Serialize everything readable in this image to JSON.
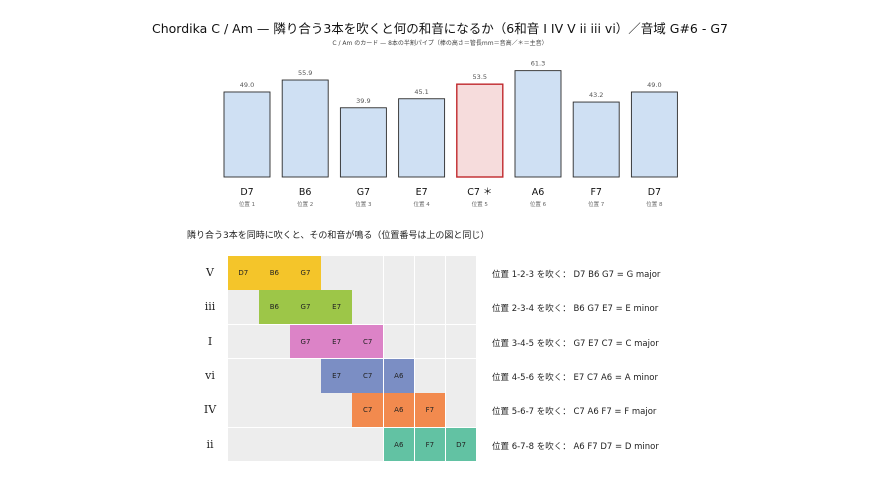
{
  "header": {
    "title": "Chordika C / Am — 隣り合う3本を吹くと何の和音になるか（6和音 I IV V ii iii vi）／音域 G#6 - G7",
    "subtitle": "C / Am のカード — 8本の半割パイプ（棒の高さ＝管長mm＝音高／＊＝主音）"
  },
  "chart_data": {
    "type": "bar",
    "categories": [
      "D7",
      "B6",
      "G7",
      "E7",
      "C7 ＊",
      "A6",
      "F7",
      "D7"
    ],
    "positions": [
      "位置 1",
      "位置 2",
      "位置 3",
      "位置 4",
      "位置 5",
      "位置 6",
      "位置 7",
      "位置 8"
    ],
    "values": [
      49.0,
      55.9,
      39.9,
      45.1,
      53.5,
      61.3,
      43.2,
      49.0
    ],
    "value_labels": [
      "49.0",
      "55.9",
      "39.9",
      "45.1",
      "53.5",
      "61.3",
      "43.2",
      "49.0"
    ],
    "highlight_index": 4,
    "colors": {
      "fill": "#cfe0f3",
      "stroke": "#2b2b2b",
      "highlight_fill": "#f6dcdc",
      "highlight_stroke": "#c0282c"
    }
  },
  "grid_section": {
    "label": "隣り合う3本を同時に吹くと、その和音が鳴る（位置番号は上の図と同じ）",
    "rows": [
      {
        "numeral": "V",
        "start": 0,
        "cells": [
          "D7",
          "B6",
          "G7"
        ],
        "color": "#f4c52a",
        "description": "位置 1-2-3 を吹く：  D7 B6 G7 = G major"
      },
      {
        "numeral": "iii",
        "start": 1,
        "cells": [
          "B6",
          "G7",
          "E7"
        ],
        "color": "#9dc648",
        "description": "位置 2-3-4 を吹く：  B6 G7 E7 = E minor"
      },
      {
        "numeral": "I",
        "start": 2,
        "cells": [
          "G7",
          "E7",
          "C7"
        ],
        "color": "#dc83c7",
        "description": "位置 3-4-5 を吹く：  G7 E7 C7 = C major"
      },
      {
        "numeral": "vi",
        "start": 3,
        "cells": [
          "E7",
          "C7",
          "A6"
        ],
        "color": "#7b8ec4",
        "description": "位置 4-5-6 を吹く：  E7 C7 A6 = A minor"
      },
      {
        "numeral": "IV",
        "start": 4,
        "cells": [
          "C7",
          "A6",
          "F7"
        ],
        "color": "#f28a4e",
        "description": "位置 5-6-7 を吹く：  C7 A6 F7 = F major"
      },
      {
        "numeral": "ii",
        "start": 5,
        "cells": [
          "A6",
          "F7",
          "D7"
        ],
        "color": "#62c2a3",
        "description": "位置 6-7-8 を吹く：  A6 F7 D7 = D minor"
      }
    ]
  }
}
